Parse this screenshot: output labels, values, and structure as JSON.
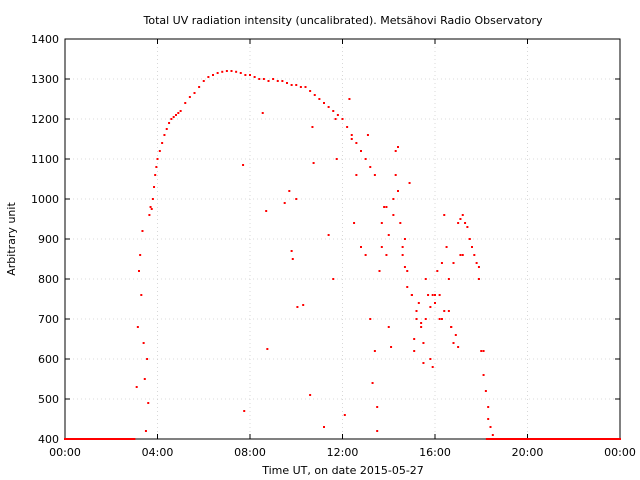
{
  "chart_data": {
    "type": "scatter",
    "title": "Total UV radiation intensity (uncalibrated). Metsähovi Radio Observatory",
    "xlabel": "Time UT, on date 2015-05-27",
    "ylabel": "Arbitrary unit",
    "xlim": [
      0,
      24
    ],
    "ylim": [
      400,
      1400
    ],
    "x_ticks": [
      0,
      4,
      8,
      12,
      16,
      20,
      24
    ],
    "x_tick_labels": [
      "00:00",
      "04:00",
      "08:00",
      "12:00",
      "16:00",
      "20:00",
      "00:00"
    ],
    "y_ticks": [
      400,
      500,
      600,
      700,
      800,
      900,
      1000,
      1100,
      1200,
      1300,
      1400
    ],
    "y_tick_labels": [
      "400",
      "500",
      "600",
      "700",
      "800",
      "900",
      "1000",
      "1100",
      "1200",
      "1300",
      "1400"
    ],
    "grid": true,
    "marker_color": "#ff0000",
    "series": [
      {
        "x": [
          0.0,
          0.5,
          1.0,
          1.5,
          2.0,
          2.5,
          3.0,
          3.1,
          3.15,
          3.2,
          3.25,
          3.3,
          3.35,
          3.4,
          3.45,
          3.5,
          3.55,
          3.6,
          3.65,
          3.7,
          3.75,
          3.8,
          3.85,
          3.9,
          3.95,
          4.0,
          4.1,
          4.2,
          4.3,
          4.4,
          4.5,
          4.6,
          4.7,
          4.8,
          4.9,
          5.0,
          5.2,
          5.4,
          5.6,
          5.8,
          6.0,
          6.2,
          6.4,
          6.6,
          6.8,
          7.0,
          7.2,
          7.4,
          7.6,
          7.8,
          8.0,
          8.2,
          8.4,
          8.6,
          8.8,
          9.0,
          9.2,
          9.4,
          9.6,
          9.8,
          10.0,
          10.2,
          10.4,
          10.6,
          10.8,
          11.0,
          11.2,
          11.4,
          11.6,
          11.8,
          12.0,
          12.2,
          12.4,
          12.6,
          12.8,
          13.0,
          13.2,
          13.4,
          7.7,
          7.75,
          8.55,
          8.7,
          8.75,
          9.5,
          9.7,
          9.8,
          9.85,
          10.0,
          10.05,
          10.3,
          10.6,
          10.7,
          10.75,
          11.2,
          11.4,
          11.6,
          11.7,
          11.75,
          12.1,
          12.3,
          12.4,
          12.5,
          12.6,
          12.8,
          13.0,
          13.1,
          13.2,
          13.3,
          13.4,
          13.5,
          13.6,
          13.7,
          13.8,
          13.9,
          14.0,
          14.1,
          14.2,
          14.3,
          14.4,
          14.5,
          14.6,
          14.7,
          14.8,
          14.9,
          15.0,
          15.1,
          15.2,
          15.3,
          15.4,
          15.5,
          15.6,
          15.7,
          15.8,
          15.9,
          16.0,
          16.1,
          16.2,
          16.3,
          16.4,
          16.5,
          16.6,
          16.7,
          16.8,
          16.9,
          17.0,
          17.1,
          17.2,
          17.3,
          17.4,
          17.5,
          17.6,
          17.7,
          17.8,
          17.9,
          18.0,
          18.1,
          18.2,
          18.3,
          18.4,
          18.5,
          18.6,
          18.8,
          19.0,
          19.5,
          20.0,
          20.5,
          21.0,
          21.5,
          22.0,
          22.5,
          23.0,
          23.5,
          24.0,
          13.5,
          13.7,
          14.0,
          14.2,
          14.4,
          14.6,
          14.8,
          15.0,
          15.2,
          15.4,
          15.6,
          15.8,
          16.0,
          16.2,
          16.4,
          16.6,
          16.8,
          17.0,
          17.2,
          13.9,
          14.3,
          14.7,
          15.1,
          15.5,
          15.9,
          16.3,
          16.7,
          17.1,
          17.5,
          17.9,
          18.1,
          18.3
        ],
        "y": [
          400,
          400,
          400,
          400,
          400,
          400,
          400,
          530,
          680,
          820,
          860,
          760,
          920,
          640,
          550,
          420,
          600,
          490,
          960,
          980,
          975,
          1000,
          1030,
          1060,
          1080,
          1100,
          1120,
          1140,
          1160,
          1175,
          1190,
          1200,
          1205,
          1210,
          1215,
          1220,
          1240,
          1255,
          1265,
          1280,
          1295,
          1305,
          1310,
          1315,
          1318,
          1320,
          1320,
          1318,
          1315,
          1310,
          1310,
          1305,
          1300,
          1300,
          1295,
          1300,
          1295,
          1295,
          1290,
          1285,
          1285,
          1280,
          1280,
          1270,
          1260,
          1250,
          1240,
          1230,
          1220,
          1210,
          1200,
          1180,
          1160,
          1140,
          1120,
          1100,
          1080,
          1060,
          1085,
          470,
          1215,
          970,
          625,
          990,
          1020,
          870,
          850,
          1000,
          730,
          735,
          510,
          1180,
          1090,
          430,
          910,
          800,
          1200,
          1100,
          460,
          1250,
          1150,
          940,
          1060,
          880,
          860,
          1160,
          700,
          540,
          620,
          480,
          820,
          940,
          980,
          860,
          680,
          630,
          1000,
          1120,
          1020,
          940,
          860,
          830,
          780,
          1040,
          760,
          620,
          700,
          740,
          680,
          640,
          700,
          760,
          600,
          580,
          740,
          820,
          760,
          700,
          960,
          880,
          720,
          680,
          840,
          660,
          630,
          860,
          960,
          940,
          930,
          900,
          880,
          860,
          840,
          800,
          620,
          560,
          520,
          450,
          430,
          410,
          400,
          400,
          400,
          400,
          400,
          400,
          400,
          400,
          400,
          400,
          400,
          400,
          400,
          420,
          880,
          910,
          960,
          1130,
          880,
          820,
          760,
          720,
          690,
          800,
          730,
          760,
          700,
          720,
          800,
          640,
          940,
          860,
          980,
          1060,
          900,
          650,
          590,
          760,
          840,
          680,
          950,
          900,
          830,
          620,
          480
        ]
      }
    ]
  }
}
